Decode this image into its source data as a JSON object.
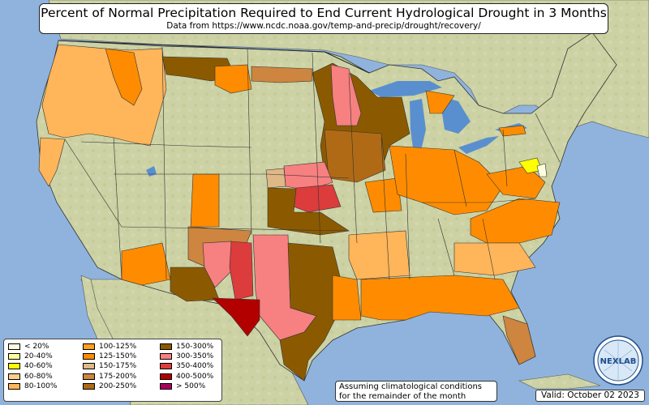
{
  "title": {
    "main": "Percent of Normal Precipitation Required to End Current Hydrological Drought in 3 Months",
    "sub": "Data from https://www.ncdc.noaa.gov/temp-and-precip/drought/recovery/"
  },
  "legend": {
    "items": [
      {
        "label": "< 20%",
        "color": "#fffde0"
      },
      {
        "label": "20-40%",
        "color": "#ffffa0"
      },
      {
        "label": "40-60%",
        "color": "#ffff00"
      },
      {
        "label": "60-80%",
        "color": "#ffd08a"
      },
      {
        "label": "80-100%",
        "color": "#ffb55a"
      },
      {
        "label": "100-125%",
        "color": "#ffa01e"
      },
      {
        "label": "125-150%",
        "color": "#ff8c00"
      },
      {
        "label": "150-175%",
        "color": "#deb887"
      },
      {
        "label": "175-200%",
        "color": "#cd853f"
      },
      {
        "label": "200-250%",
        "color": "#b06a15"
      },
      {
        "label": "150-300%",
        "color": "#8b5a00"
      },
      {
        "label": "300-350%",
        "color": "#f78080"
      },
      {
        "label": "350-400%",
        "color": "#dc3c3c"
      },
      {
        "label": "400-500%",
        "color": "#b20000"
      },
      {
        "label": "> 500%",
        "color": "#a8005c"
      }
    ]
  },
  "note": {
    "line1": "Assuming climatological conditions",
    "line2": "for the remainder of the month"
  },
  "valid_text": "Valid: October 02 2023",
  "logo_text": "NEXLAB",
  "map": {
    "land_color": "#cfd2a8",
    "water_color": "#8fb3dd",
    "lake_color": "#5a8fcf"
  }
}
